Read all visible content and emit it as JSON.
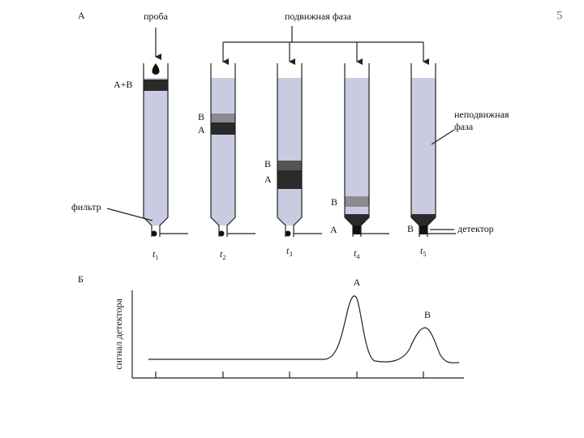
{
  "page_number": "5",
  "panel_a": {
    "label": "А",
    "sample_label": "проба",
    "mobile_phase_label": "подвижная фаза",
    "stationary_phase_label": [
      "неподвижная",
      "фаза"
    ],
    "filter_label": "фильтр",
    "detector_label": "детектор",
    "columns": [
      {
        "time": {
          "symbol": "t",
          "index": "1"
        },
        "labels": [
          "А+В"
        ]
      },
      {
        "time": {
          "symbol": "t",
          "index": "2"
        },
        "labels": [
          "В",
          "А"
        ]
      },
      {
        "time": {
          "symbol": "t",
          "index": "3"
        },
        "labels": [
          "В",
          "А"
        ]
      },
      {
        "time": {
          "symbol": "t",
          "index": "4"
        },
        "labels": [
          "В",
          "А"
        ]
      },
      {
        "time": {
          "symbol": "t",
          "index": "5"
        },
        "labels": [
          "В"
        ]
      }
    ]
  },
  "panel_b": {
    "label": "Б",
    "y_axis_label": "сигнал детектора",
    "peaks": [
      "А",
      "В"
    ]
  }
}
